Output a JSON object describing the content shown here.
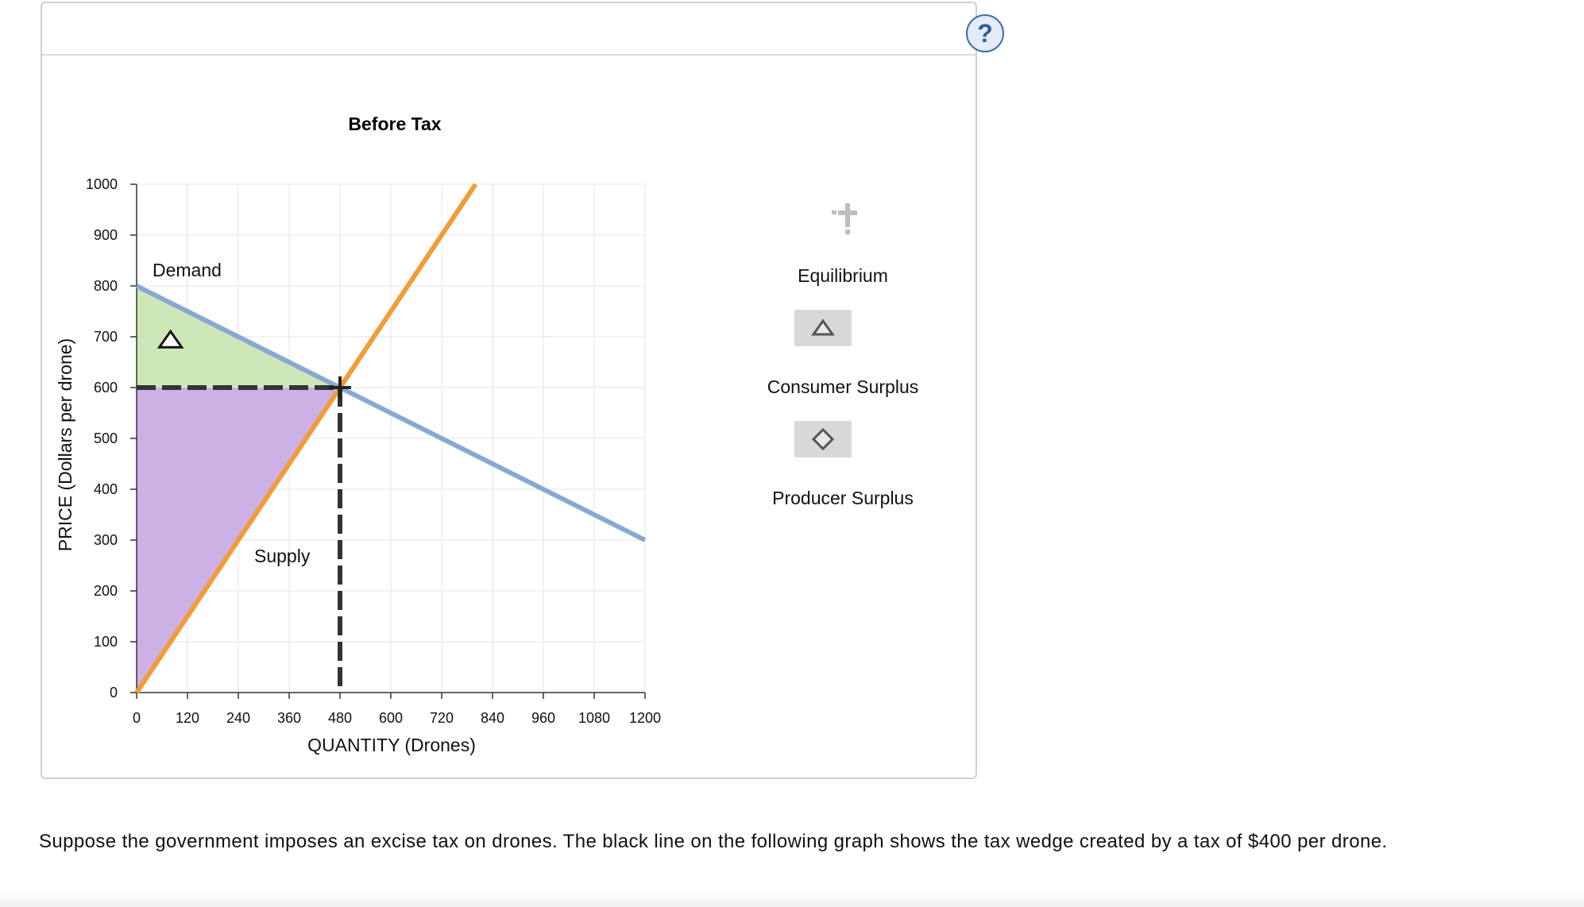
{
  "help": {
    "label": "?"
  },
  "chart_data": {
    "type": "line",
    "title": "Before Tax",
    "xlabel": "QUANTITY (Drones)",
    "ylabel": "PRICE (Dollars per drone)",
    "xlim": [
      0,
      1200
    ],
    "ylim": [
      0,
      1000
    ],
    "xticks": [
      0,
      120,
      240,
      360,
      480,
      600,
      720,
      840,
      960,
      1080,
      1200
    ],
    "yticks": [
      0,
      100,
      200,
      300,
      400,
      500,
      600,
      700,
      800,
      900,
      1000
    ],
    "grid": true,
    "series": [
      {
        "name": "Demand",
        "color": "#87a9d4",
        "x": [
          0,
          1200
        ],
        "y": [
          800,
          300
        ]
      },
      {
        "name": "Supply",
        "color": "#f29c38",
        "x": [
          0,
          800
        ],
        "y": [
          0,
          1000
        ]
      }
    ],
    "equilibrium": {
      "x": 480,
      "y": 600
    },
    "areas": [
      {
        "name": "Consumer Surplus",
        "color": "#cde8b8",
        "x": [
          0,
          0,
          480
        ],
        "y": [
          800,
          600,
          600
        ]
      },
      {
        "name": "Producer Surplus",
        "color": "#cdb0e4",
        "x": [
          0,
          0,
          480
        ],
        "y": [
          0,
          600,
          600
        ]
      }
    ]
  },
  "legend": {
    "equilibrium_label": "Equilibrium",
    "consumer_surplus_label": "Consumer Surplus",
    "producer_surplus_label": "Producer Surplus"
  },
  "question": {
    "text": "Suppose the government imposes an excise tax on drones. The black line on the following graph shows the tax wedge created by a tax of $400 per drone."
  }
}
